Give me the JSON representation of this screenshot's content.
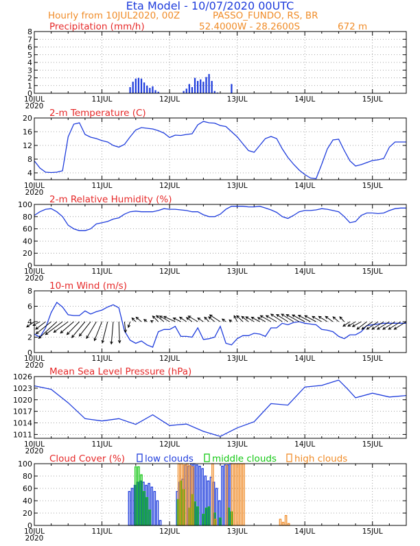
{
  "header": {
    "title": "Eta Model - 10/07/2020 00UTC",
    "line2_left": "Hourly from 10JUL2020, 00Z",
    "station": "PASSO_FUNDO, RS, BR",
    "coords": "52.4000W - 28.2600S",
    "elevation": "672 m"
  },
  "colors": {
    "title": "#1e3cdc",
    "subtitle": "#f08c28",
    "panel_title": "#e62828",
    "series": "#1e3cdc",
    "low": "#1e3cdc",
    "middle": "#14c814",
    "high": "#f08c28",
    "vector": "#000000",
    "grid": "#888888",
    "frame": "#000000"
  },
  "time_axis": {
    "ticks": [
      "10JUL",
      "11JUL",
      "12JUL",
      "13JUL",
      "14JUL",
      "15JUL"
    ],
    "year": "2020",
    "hours_total": 132
  },
  "chart_data": [
    {
      "id": "precip",
      "type": "bar",
      "title": "Precipitation (mm/h)",
      "ylim": [
        0,
        8
      ],
      "yticks": [
        0,
        1,
        2,
        3,
        4,
        5,
        6,
        7,
        8
      ],
      "hours": [
        34,
        35,
        36,
        37,
        38,
        39,
        40,
        41,
        42,
        43,
        44,
        53,
        54,
        55,
        56,
        57,
        58,
        59,
        60,
        61,
        62,
        63,
        64,
        65,
        70
      ],
      "values": [
        0.8,
        1.5,
        1.9,
        2.0,
        1.9,
        1.4,
        1.0,
        0.7,
        0.9,
        0.4,
        0.2,
        0.3,
        0.6,
        1.2,
        0.8,
        2.0,
        1.6,
        1.8,
        1.5,
        2.1,
        2.5,
        1.6,
        0.3,
        0.1,
        1.2
      ]
    },
    {
      "id": "temp",
      "type": "line",
      "title": "2-m Temperature (C)",
      "ylim": [
        2,
        20
      ],
      "yticks": [
        4,
        8,
        12,
        16,
        20
      ],
      "hours": [
        0,
        2,
        4,
        6,
        8,
        10,
        12,
        14,
        16,
        18,
        20,
        22,
        24,
        26,
        28,
        30,
        32,
        34,
        36,
        38,
        40,
        42,
        44,
        46,
        48,
        50,
        52,
        54,
        56,
        58,
        60,
        62,
        64,
        66,
        68,
        70,
        72,
        74,
        76,
        78,
        80,
        82,
        84,
        86,
        88,
        90,
        92,
        94,
        96,
        98,
        100,
        102,
        104,
        106,
        108,
        110,
        112,
        114,
        116,
        118,
        120,
        122,
        124,
        126,
        128,
        130,
        132
      ],
      "values": [
        7.5,
        5.4,
        4.2,
        4.1,
        4.2,
        4.6,
        14.5,
        18.2,
        18.6,
        15.2,
        14.4,
        14.0,
        13.4,
        13.0,
        12.0,
        11.5,
        12.3,
        14.5,
        16.5,
        17.2,
        17.0,
        16.8,
        16.3,
        15.6,
        14.3,
        15.0,
        14.9,
        15.2,
        15.4,
        18.0,
        19.0,
        18.6,
        18.5,
        17.8,
        17.5,
        16.0,
        14.5,
        12.5,
        10.5,
        10.0,
        12.0,
        14.0,
        14.6,
        14.0,
        11.0,
        8.5,
        6.5,
        4.8,
        3.5,
        2.5,
        2.3,
        6.5,
        11.0,
        13.6,
        13.8,
        10.5,
        7.5,
        6.0,
        6.4,
        7.0,
        7.6,
        7.8,
        8.2,
        11.5,
        13.0,
        13.0,
        13.0
      ]
    },
    {
      "id": "rh",
      "type": "line",
      "title": "2-m Relative Humidity (%)",
      "ylim": [
        0,
        100
      ],
      "yticks": [
        0,
        20,
        40,
        60,
        80,
        100
      ],
      "hours": [
        0,
        2,
        4,
        6,
        8,
        10,
        12,
        14,
        16,
        18,
        20,
        22,
        24,
        26,
        28,
        30,
        32,
        34,
        36,
        38,
        40,
        42,
        44,
        46,
        48,
        50,
        52,
        54,
        56,
        58,
        60,
        62,
        64,
        66,
        68,
        70,
        72,
        74,
        76,
        78,
        80,
        82,
        84,
        86,
        88,
        90,
        92,
        94,
        96,
        98,
        100,
        102,
        104,
        106,
        108,
        110,
        112,
        114,
        116,
        118,
        120,
        122,
        124,
        126,
        128,
        130,
        132
      ],
      "values": [
        82,
        88,
        92,
        93,
        88,
        80,
        66,
        60,
        57,
        57,
        60,
        68,
        70,
        72,
        76,
        78,
        84,
        88,
        89,
        88,
        88,
        88,
        90,
        93,
        92,
        92,
        91,
        90,
        88,
        88,
        83,
        80,
        80,
        84,
        92,
        97,
        97,
        97,
        96,
        96,
        97,
        94,
        91,
        87,
        80,
        77,
        82,
        88,
        90,
        90,
        91,
        93,
        92,
        90,
        88,
        80,
        70,
        72,
        82,
        86,
        86,
        85,
        86,
        90,
        93,
        94,
        94
      ]
    },
    {
      "id": "wind",
      "type": "line",
      "title": "10-m Wind (m/s)",
      "ylim": [
        0,
        8
      ],
      "yticks": [
        0,
        2,
        4,
        6,
        8
      ],
      "hours": [
        0,
        2,
        4,
        6,
        8,
        10,
        12,
        14,
        16,
        18,
        20,
        22,
        24,
        26,
        28,
        30,
        32,
        34,
        36,
        38,
        40,
        42,
        44,
        46,
        48,
        50,
        52,
        54,
        56,
        58,
        60,
        62,
        64,
        66,
        68,
        70,
        72,
        74,
        76,
        78,
        80,
        82,
        84,
        86,
        88,
        90,
        92,
        94,
        96,
        98,
        100,
        102,
        104,
        106,
        108,
        110,
        112,
        114,
        116,
        118,
        120,
        122,
        124,
        126,
        128,
        130,
        132
      ],
      "values": [
        2.4,
        2.0,
        3.2,
        5.2,
        6.5,
        5.9,
        4.9,
        4.8,
        4.8,
        5.4,
        5.0,
        5.3,
        5.5,
        5.9,
        6.2,
        5.8,
        2.8,
        1.6,
        1.2,
        1.5,
        1.0,
        0.7,
        2.7,
        3.0,
        3.0,
        3.4,
        2.1,
        2.1,
        2.0,
        3.2,
        1.7,
        1.8,
        2.0,
        3.4,
        1.2,
        1.0,
        1.8,
        2.2,
        2.2,
        2.5,
        2.4,
        2.1,
        3.2,
        3.2,
        3.8,
        3.6,
        3.9,
        4.0,
        3.8,
        3.7,
        3.6,
        3.0,
        2.9,
        2.7,
        2.1,
        1.8,
        2.3,
        2.3,
        2.7,
        3.5,
        3.6,
        3.7,
        3.8,
        3.8,
        3.8,
        3.8,
        3.8
      ],
      "vectors": {
        "hours": [
          0,
          2,
          4,
          6,
          8,
          10,
          12,
          14,
          16,
          18,
          20,
          22,
          24,
          26,
          28,
          30,
          32,
          34,
          36,
          38,
          40,
          42,
          44,
          46,
          48,
          50,
          52,
          54,
          56,
          58,
          60,
          62,
          64,
          66,
          68,
          70,
          72,
          74,
          76,
          78,
          80,
          82,
          84,
          86,
          88,
          90,
          92,
          94,
          96,
          98,
          100,
          102,
          104,
          106,
          108,
          110,
          112,
          114,
          116,
          118,
          120,
          122,
          124,
          126,
          128,
          130,
          132
        ],
        "u": [
          -2.0,
          -1.8,
          -2.6,
          -4.0,
          -4.8,
          -4.5,
          -3.8,
          -3.5,
          -3.3,
          -3.5,
          -3.0,
          -2.6,
          -2.0,
          -1.4,
          -0.5,
          0.2,
          0.3,
          -0.5,
          -1.0,
          -1.4,
          -0.8,
          -0.5,
          -1.5,
          -2.0,
          -2.6,
          -3.0,
          -2.0,
          -1.8,
          -1.5,
          -2.5,
          -1.5,
          -1.2,
          -1.6,
          -2.8,
          -1.0,
          -0.6,
          -0.8,
          -1.6,
          -1.8,
          -2.2,
          -2.2,
          -2.0,
          -2.8,
          -2.8,
          -3.0,
          -3.0,
          -3.2,
          -3.4,
          -3.3,
          -3.2,
          -3.0,
          -2.5,
          -2.3,
          -2.0,
          -1.5,
          -1.2,
          -1.8,
          -2.0,
          -2.3,
          -2.6,
          -2.8,
          -3.0,
          -3.1,
          -3.2,
          -3.2,
          -3.2,
          -3.2
        ],
        "v": [
          -1.4,
          -1.0,
          -2.0,
          -3.2,
          -4.4,
          -3.4,
          -2.8,
          -3.0,
          -3.4,
          -4.2,
          -3.8,
          -4.4,
          -5.0,
          -5.6,
          -5.9,
          -5.6,
          -2.8,
          -1.5,
          1.0,
          1.2,
          0.6,
          0.3,
          1.5,
          1.6,
          1.5,
          1.4,
          1.0,
          1.2,
          1.1,
          1.5,
          1.0,
          1.2,
          1.3,
          1.8,
          0.7,
          0.5,
          1.6,
          1.6,
          1.4,
          1.3,
          1.2,
          1.1,
          1.6,
          1.6,
          2.0,
          1.9,
          2.0,
          1.9,
          1.8,
          1.7,
          1.6,
          1.4,
          1.4,
          1.4,
          1.3,
          1.3,
          -1.2,
          -1.2,
          -1.3,
          -2.0,
          -2.0,
          -2.0,
          -2.0,
          -2.0,
          -2.0,
          -2.0,
          -2.0
        ]
      }
    },
    {
      "id": "mslp",
      "type": "line",
      "title": "Mean Sea Level Pressure (hPa)",
      "ylim": [
        1010,
        1026
      ],
      "yticks": [
        1011,
        1014,
        1017,
        1020,
        1023,
        1026
      ],
      "hours": [
        0,
        6,
        12,
        18,
        24,
        30,
        36,
        42,
        48,
        54,
        60,
        66,
        72,
        78,
        84,
        90,
        96,
        102,
        108,
        111,
        114,
        120,
        126,
        132
      ],
      "values": [
        1023.6,
        1022.7,
        1019.2,
        1015.1,
        1014.5,
        1015.1,
        1013.6,
        1016.1,
        1013.3,
        1013.7,
        1011.8,
        1010.5,
        1012.7,
        1014.3,
        1019.0,
        1018.6,
        1023.3,
        1023.7,
        1025.1,
        1022.9,
        1020.5,
        1021.7,
        1020.7,
        1021.1
      ]
    },
    {
      "id": "clouds",
      "type": "bar",
      "title": "Cloud Cover (%)",
      "legend": [
        "low clouds",
        "middle clouds",
        "high clouds"
      ],
      "ylim": [
        0,
        100
      ],
      "yticks": [
        0,
        20,
        40,
        60,
        80,
        100
      ],
      "series": [
        {
          "name": "low clouds",
          "hours": [
            34,
            35,
            36,
            37,
            38,
            39,
            40,
            41,
            42,
            43,
            44,
            45,
            51,
            52,
            53,
            54,
            55,
            56,
            57,
            58,
            59,
            60,
            61,
            62,
            63,
            64,
            65,
            66,
            67,
            68,
            69,
            70
          ],
          "values": [
            55,
            60,
            65,
            70,
            72,
            70,
            65,
            68,
            62,
            55,
            40,
            8,
            55,
            70,
            75,
            98,
            96,
            100,
            100,
            98,
            96,
            92,
            80,
            72,
            78,
            70,
            60,
            40,
            96,
            98,
            98,
            100
          ]
        },
        {
          "name": "middle clouds",
          "hours": [
            36,
            37,
            38,
            39,
            40,
            41,
            51,
            52,
            53,
            55,
            56,
            57,
            58,
            60,
            61,
            62,
            64,
            66,
            69,
            70
          ],
          "values": [
            95,
            95,
            82,
            55,
            45,
            25,
            42,
            72,
            58,
            28,
            50,
            38,
            30,
            18,
            28,
            30,
            20,
            12,
            28,
            22
          ]
        },
        {
          "name": "high clouds",
          "hours": [
            51,
            52,
            53,
            54,
            55,
            56,
            63,
            64,
            68,
            70,
            71,
            72,
            73,
            74,
            87,
            88,
            89,
            90
          ],
          "values": [
            100,
            100,
            98,
            100,
            97,
            95,
            100,
            10,
            97,
            100,
            100,
            100,
            100,
            100,
            10,
            5,
            16,
            3
          ]
        }
      ]
    }
  ]
}
